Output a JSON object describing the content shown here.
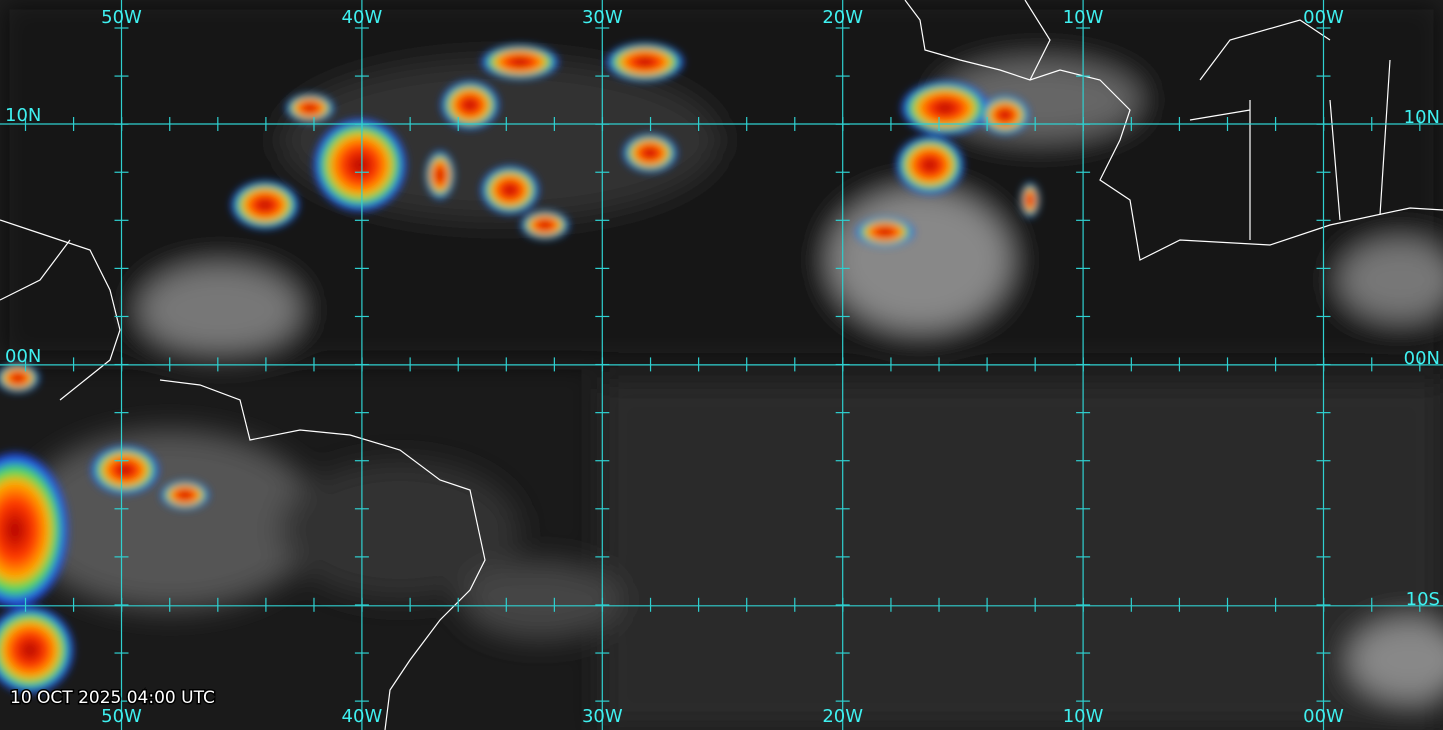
{
  "longitudes": [
    "50W",
    "40W",
    "30W",
    "20W",
    "10W",
    "00W"
  ],
  "latitudes": [
    "10N",
    "00N",
    "10S"
  ],
  "timestamp": "10 OCT 2025 04:00 UTC"
}
